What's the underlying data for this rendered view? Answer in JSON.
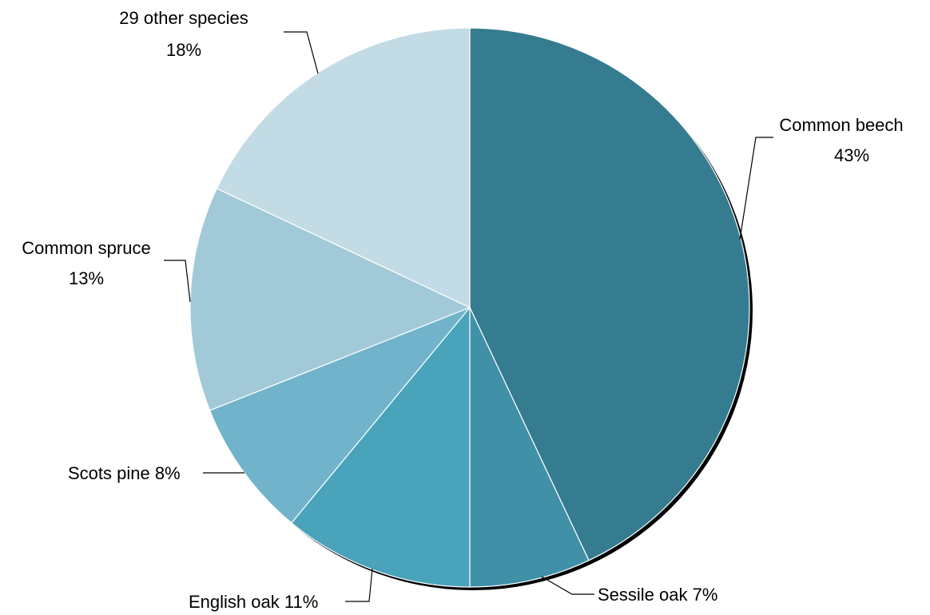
{
  "chart_data": {
    "type": "pie",
    "title": "",
    "slices": [
      {
        "label": "Common beech",
        "pct_label": "43%",
        "value": 43,
        "color": "#367C90"
      },
      {
        "label": "Sessile oak",
        "pct_label": "7%",
        "value": 7,
        "color": "#4090A8"
      },
      {
        "label": "English oak",
        "pct_label": "11%",
        "value": 11,
        "color": "#48A3BB"
      },
      {
        "label": "Scots pine",
        "pct_label": "8%",
        "value": 8,
        "color": "#70B3CA"
      },
      {
        "label": "Common spruce",
        "pct_label": "13%",
        "value": 13,
        "color": "#A1C9D8"
      },
      {
        "label": "29 other species",
        "pct_label": "18%",
        "value": 18,
        "color": "#C3DBE4"
      }
    ],
    "legend": "none",
    "start_angle": "top, clockwise"
  }
}
